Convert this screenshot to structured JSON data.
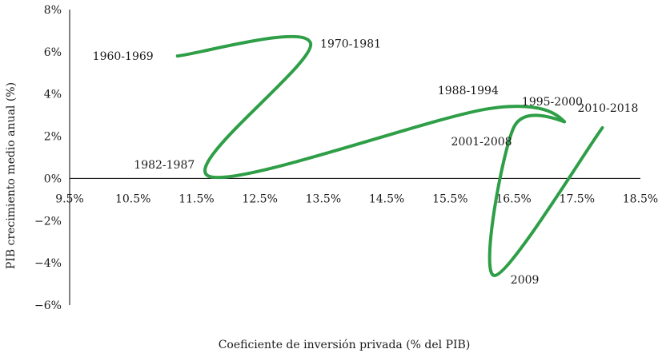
{
  "chart_data": {
    "type": "line",
    "xlabel": "Coeficiente de inversión privada (% del PIB)",
    "ylabel": "PIB crecimiento medio anual (%)",
    "xlim": [
      9.5,
      18.5
    ],
    "ylim": [
      -6,
      8
    ],
    "x_ticks": [
      9.5,
      10.5,
      11.5,
      12.5,
      13.5,
      14.5,
      15.5,
      16.5,
      17.5,
      18.5
    ],
    "x_tick_labels": [
      "9.5%",
      "10.5%",
      "11.5%",
      "12.5%",
      "13.5%",
      "14.5%",
      "15.5%",
      "16.5%",
      "17.5%",
      "18.5%"
    ],
    "y_ticks": [
      8,
      6,
      4,
      2,
      0,
      -2,
      -4,
      -6
    ],
    "y_tick_labels": [
      "8%",
      "6%",
      "4%",
      "2%",
      "0%",
      "−2%",
      "−4%",
      "−6%"
    ],
    "line_color": "#2e9e47",
    "grid": false,
    "points": [
      {
        "x": 11.2,
        "y": 5.8,
        "label": "1960-1969"
      },
      {
        "x": 13.3,
        "y": 6.4,
        "label": "1970-1981"
      },
      {
        "x": 11.7,
        "y": 0.1,
        "label": "1982-1987"
      },
      {
        "x": 16.1,
        "y": 3.3,
        "label": "1988-1994"
      },
      {
        "x": 17.3,
        "y": 2.7,
        "label": "1995-2000"
      },
      {
        "x": 16.5,
        "y": 2.4,
        "label": "2001-2008"
      },
      {
        "x": 16.2,
        "y": -4.6,
        "label": "2009"
      },
      {
        "x": 17.9,
        "y": 2.4,
        "label": "2010-2018"
      }
    ]
  }
}
